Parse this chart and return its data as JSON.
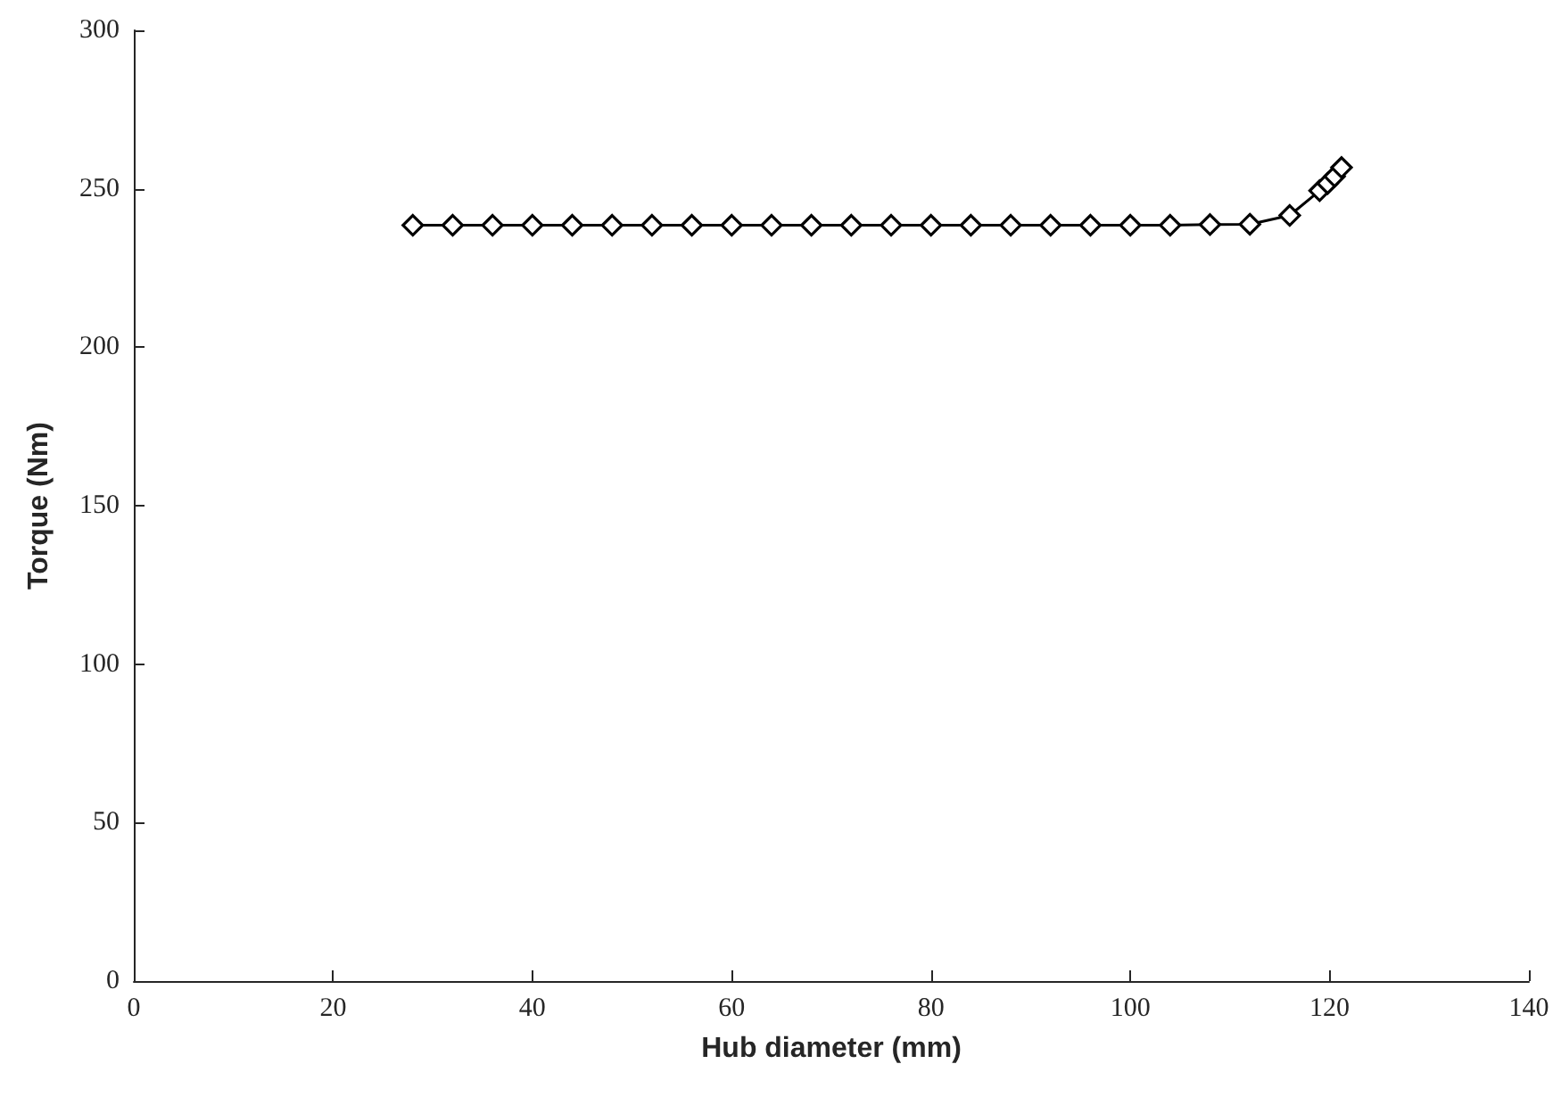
{
  "chart_data": {
    "type": "line",
    "xlabel": "Hub diameter (mm)",
    "ylabel": "Torque (Nm)",
    "x": [
      28,
      32,
      36,
      40,
      44,
      48,
      52,
      56,
      60,
      64,
      68,
      72,
      76,
      80,
      84,
      88,
      92,
      96,
      100,
      104,
      108,
      112,
      116,
      119,
      119.8,
      120.5,
      121.2
    ],
    "series": [
      {
        "color": "#000000",
        "values": [
          238.5,
          238.5,
          238.5,
          238.5,
          238.5,
          238.5,
          238.5,
          238.5,
          238.5,
          238.5,
          238.5,
          238.5,
          238.5,
          238.5,
          238.5,
          238.5,
          238.5,
          238.5,
          238.5,
          238.5,
          238.7,
          238.8,
          241.6,
          249.4,
          251.7,
          253.9,
          256.7
        ]
      }
    ],
    "xlim": [
      0,
      140
    ],
    "xticks": [
      0,
      20,
      40,
      60,
      80,
      100,
      120,
      140
    ],
    "ylim": [
      0,
      300
    ],
    "yticks": [
      0,
      50,
      100,
      150,
      200,
      250,
      300
    ],
    "marker": "diamond",
    "line_style": "solid"
  }
}
